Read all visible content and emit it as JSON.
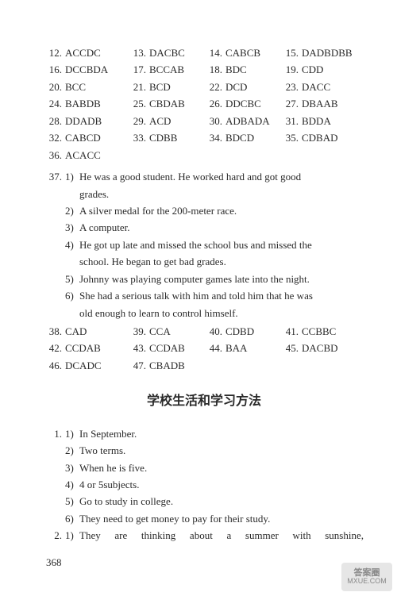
{
  "colors": {
    "text": "#2a2a2a",
    "bg": "#ffffff"
  },
  "font": {
    "family": "Times New Roman",
    "size_pt": 10
  },
  "answers_block1": [
    {
      "n": "12.",
      "v": "ACCDC"
    },
    {
      "n": "13.",
      "v": "DACBC"
    },
    {
      "n": "14.",
      "v": "CABCB"
    },
    {
      "n": "15.",
      "v": "DADBDBB"
    },
    {
      "n": "16.",
      "v": "DCCBDA"
    },
    {
      "n": "17.",
      "v": "BCCAB"
    },
    {
      "n": "18.",
      "v": "BDC"
    },
    {
      "n": "19.",
      "v": "CDD"
    },
    {
      "n": "20.",
      "v": "BCC"
    },
    {
      "n": "21.",
      "v": "BCD"
    },
    {
      "n": "22.",
      "v": "DCD"
    },
    {
      "n": "23.",
      "v": "DACC"
    },
    {
      "n": "24.",
      "v": "BABDB"
    },
    {
      "n": "25.",
      "v": "CBDAB"
    },
    {
      "n": "26.",
      "v": "DDCBC"
    },
    {
      "n": "27.",
      "v": "DBAAB"
    },
    {
      "n": "28.",
      "v": "DDADB"
    },
    {
      "n": "29.",
      "v": "ACD"
    },
    {
      "n": "30.",
      "v": "ADBADA"
    },
    {
      "n": "31.",
      "v": "BDDA"
    },
    {
      "n": "32.",
      "v": "CABCD"
    },
    {
      "n": "33.",
      "v": "CDBB"
    },
    {
      "n": "34.",
      "v": "BDCD"
    },
    {
      "n": "35.",
      "v": "CDBAD"
    },
    {
      "n": "36.",
      "v": "ACACC"
    }
  ],
  "q37": {
    "num": "37.",
    "subs": [
      {
        "n": "1)",
        "lines": [
          "He was a good student. He worked hard and got good",
          "grades."
        ]
      },
      {
        "n": "2)",
        "lines": [
          "A silver medal for the 200-meter race."
        ]
      },
      {
        "n": "3)",
        "lines": [
          "A computer."
        ]
      },
      {
        "n": "4)",
        "lines": [
          "He got up late and missed the school bus and missed the",
          "school. He began to get bad grades."
        ]
      },
      {
        "n": "5)",
        "lines": [
          "Johnny was playing computer games late into the night."
        ]
      },
      {
        "n": "6)",
        "lines": [
          "She had a serious talk with him and told him that he was",
          "old enough to learn to control himself."
        ]
      }
    ]
  },
  "answers_block2": [
    {
      "n": "38.",
      "v": "CAD"
    },
    {
      "n": "39.",
      "v": "CCA"
    },
    {
      "n": "40.",
      "v": "CDBD"
    },
    {
      "n": "41.",
      "v": "CCBBC"
    },
    {
      "n": "42.",
      "v": "CCDAB"
    },
    {
      "n": "43.",
      "v": "CCDAB"
    },
    {
      "n": "44.",
      "v": "BAA"
    },
    {
      "n": "45.",
      "v": "DACBD"
    },
    {
      "n": "46.",
      "v": "DCADC"
    },
    {
      "n": "47.",
      "v": "CBADB"
    }
  ],
  "section_title": "学校生活和学习方法",
  "q1": {
    "num": "1.",
    "subs": [
      {
        "n": "1)",
        "t": "In September."
      },
      {
        "n": "2)",
        "t": "Two terms."
      },
      {
        "n": "3)",
        "t": "When he is five."
      },
      {
        "n": "4)",
        "t": "4 or 5subjects."
      },
      {
        "n": "5)",
        "t": "Go to study in college."
      },
      {
        "n": "6)",
        "t": "They need to get money to pay for their study."
      }
    ]
  },
  "q2": {
    "num": "2.",
    "sub_n": "1)",
    "t": "They are thinking about a summer with sunshine,"
  },
  "page_number": "368",
  "watermark": {
    "l1": "答案圈",
    "l2": "MXUE.COM"
  }
}
